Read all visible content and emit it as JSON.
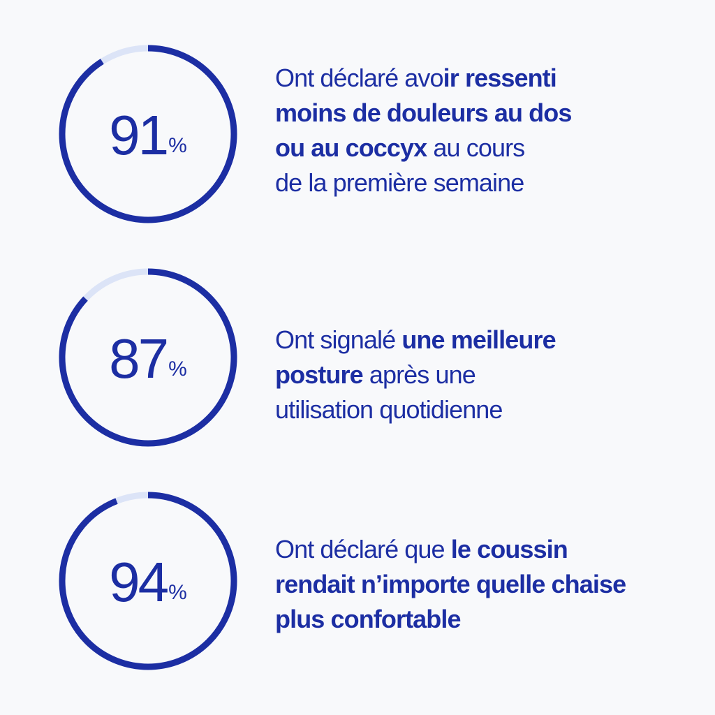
{
  "colors": {
    "background": "#f8f9fb",
    "accent": "#1c2ea3",
    "track": "#dce4f7"
  },
  "stats": [
    {
      "value": 91,
      "number_label": "91",
      "percent_sign": "%",
      "text": {
        "l1_normal": "Ont déclaré avo",
        "l1_bold": "ir ressenti",
        "l2_bold": "moins de douleurs au dos",
        "l3_bold": "ou au coccyx",
        "l3_normal": " au cours",
        "l4_normal": "de la première semaine"
      }
    },
    {
      "value": 87,
      "number_label": "87",
      "percent_sign": "%",
      "text": {
        "l1_normal": "Ont signalé ",
        "l1_bold": "une meilleure",
        "l2_bold": "posture",
        "l2_normal": " après une",
        "l3_normal": "utilisation quotidienne"
      }
    },
    {
      "value": 94,
      "number_label": "94",
      "percent_sign": "%",
      "text": {
        "l1_normal": "Ont déclaré que ",
        "l1_bold": "le coussin",
        "l2_bold": "rendait n’importe quelle chaise",
        "l3_bold": "plus confortable"
      }
    }
  ]
}
